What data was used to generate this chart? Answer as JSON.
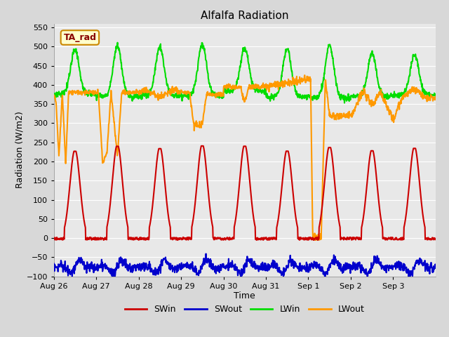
{
  "title": "Alfalfa Radiation",
  "xlabel": "Time",
  "ylabel": "Radiation (W/m2)",
  "ylim": [
    -100,
    560
  ],
  "background_color": "#d8d8d8",
  "plot_bg_color": "#e8e8e8",
  "grid_color": "#ffffff",
  "annotation_text": "TA_rad",
  "annotation_bg": "#ffffcc",
  "annotation_border": "#cc8800",
  "annotation_text_color": "#880000",
  "colors": {
    "SWin": "#cc0000",
    "SWout": "#0000cc",
    "LWin": "#00dd00",
    "LWout": "#ff9900"
  },
  "xtick_labels": [
    "Aug 26",
    "Aug 27",
    "Aug 28",
    "Aug 29",
    "Aug 30",
    "Aug 31",
    "Sep 1",
    "Sep 2",
    "Sep 3"
  ],
  "n_days": 9
}
